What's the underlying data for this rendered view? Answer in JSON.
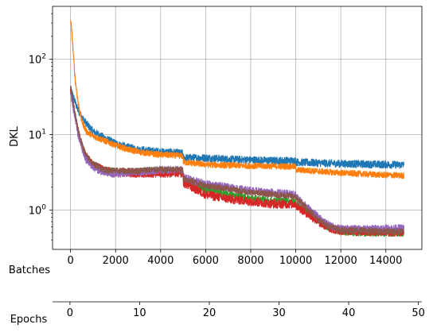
{
  "chart_data": {
    "type": "line",
    "title": "",
    "ylabel": "DKL",
    "yscale": "log",
    "ylim": [
      0.3,
      500
    ],
    "xlim": [
      -800,
      15600
    ],
    "grid": true,
    "x_axis": {
      "label": "Batches",
      "ticks": [
        0,
        2000,
        4000,
        6000,
        8000,
        10000,
        12000,
        14000
      ],
      "tick_labels": [
        "0",
        "2000",
        "4000",
        "6000",
        "8000",
        "10000",
        "12000",
        "14000"
      ]
    },
    "secondary_x_axis": {
      "label": "Epochs",
      "ticks": [
        0,
        10,
        20,
        30,
        40,
        50
      ],
      "tick_labels": [
        "0",
        "10",
        "20",
        "30",
        "40",
        "50"
      ],
      "xlim": [
        -2.5,
        50.5
      ]
    },
    "y_axis": {
      "major_ticks": [
        1,
        10,
        100
      ],
      "tick_labels": [
        {
          "base": "10",
          "exp": "0"
        },
        {
          "base": "10",
          "exp": "1"
        },
        {
          "base": "10",
          "exp": "2"
        }
      ],
      "minor_ticks": [
        0.4,
        0.5,
        0.6,
        0.7,
        0.8,
        0.9,
        2,
        3,
        4,
        5,
        6,
        7,
        8,
        9,
        20,
        30,
        40,
        50,
        60,
        70,
        80,
        90,
        200,
        300,
        400
      ]
    },
    "series": [
      {
        "color": "#1f77b4",
        "noise": 0.05,
        "x": [
          0,
          150,
          300,
          500,
          700,
          1000,
          1500,
          2000,
          2500,
          3000,
          3500,
          4000,
          4500,
          4990,
          5010,
          6000,
          7000,
          8000,
          9000,
          9990,
          10010,
          11000,
          12000,
          13000,
          14000,
          14800
        ],
        "y": [
          40,
          30,
          22,
          17,
          14,
          11,
          9,
          7.6,
          6.8,
          6.3,
          6.1,
          5.9,
          5.8,
          5.6,
          4.9,
          4.9,
          4.7,
          4.6,
          4.5,
          4.5,
          4.3,
          4.2,
          4.1,
          4.05,
          4.0,
          3.95
        ]
      },
      {
        "color": "#ff7f0e",
        "noise": 0.04,
        "x": [
          0,
          100,
          200,
          350,
          500,
          700,
          1000,
          1500,
          2000,
          2500,
          3000,
          3500,
          4000,
          4500,
          4990,
          5010,
          6000,
          7000,
          8000,
          9000,
          9990,
          10010,
          11000,
          12000,
          13000,
          14000,
          14800
        ],
        "y": [
          350,
          150,
          55,
          25,
          15,
          11,
          9.5,
          8.3,
          7.2,
          6.4,
          5.9,
          5.6,
          5.4,
          5.3,
          5.2,
          4.3,
          4.0,
          3.9,
          3.85,
          3.8,
          3.75,
          3.4,
          3.25,
          3.1,
          3.0,
          2.9,
          2.85
        ]
      },
      {
        "color": "#2ca02c",
        "noise": 0.05,
        "x": [
          0,
          150,
          300,
          500,
          700,
          1000,
          1500,
          2000,
          2500,
          3000,
          3500,
          4000,
          4500,
          4990,
          5010,
          6000,
          7000,
          8000,
          9000,
          9990,
          10010,
          10500,
          11000,
          11500,
          12000,
          13000,
          14000,
          14800
        ],
        "y": [
          38,
          22,
          12,
          7,
          5,
          4,
          3.3,
          3.2,
          3.2,
          3.2,
          3.3,
          3.3,
          3.3,
          3.3,
          2.5,
          1.9,
          1.6,
          1.4,
          1.3,
          1.3,
          1.2,
          0.95,
          0.72,
          0.58,
          0.52,
          0.5,
          0.5,
          0.5
        ]
      },
      {
        "color": "#d62728",
        "noise": 0.06,
        "x": [
          0,
          150,
          300,
          500,
          700,
          1000,
          1500,
          2000,
          2500,
          3000,
          3500,
          4000,
          4500,
          4990,
          5010,
          6000,
          7000,
          8000,
          9000,
          9990,
          10010,
          10500,
          11000,
          11500,
          12000,
          13000,
          14000,
          14800
        ],
        "y": [
          40,
          22,
          12,
          7,
          5,
          4,
          3.3,
          3.1,
          3.1,
          3.1,
          3.1,
          3.1,
          3.1,
          3.1,
          2.3,
          1.6,
          1.4,
          1.3,
          1.2,
          1.2,
          1.15,
          0.9,
          0.7,
          0.58,
          0.53,
          0.52,
          0.51,
          0.51
        ]
      },
      {
        "color": "#9467bd",
        "noise": 0.05,
        "x": [
          0,
          150,
          300,
          500,
          700,
          1000,
          1500,
          2000,
          2500,
          3000,
          3500,
          4000,
          4500,
          4990,
          5010,
          6000,
          7000,
          8000,
          9000,
          9990,
          10010,
          10500,
          11000,
          11500,
          12000,
          13000,
          14000,
          14800
        ],
        "y": [
          36,
          20,
          11,
          6.5,
          4.6,
          3.7,
          3.1,
          3.0,
          3.1,
          3.2,
          3.3,
          3.4,
          3.4,
          3.4,
          2.7,
          2.2,
          2.0,
          1.8,
          1.7,
          1.6,
          1.5,
          1.1,
          0.8,
          0.62,
          0.56,
          0.56,
          0.57,
          0.57
        ]
      },
      {
        "color": "#8c564b",
        "noise": 0.04,
        "x": [
          0,
          150,
          300,
          500,
          700,
          1000,
          1500,
          2000,
          2500,
          3000,
          3500,
          4000,
          4500,
          4990,
          5010,
          6000,
          7000,
          8000,
          9000,
          9990,
          10010,
          10500,
          11000,
          11500,
          12000,
          13000,
          14000,
          14800
        ],
        "y": [
          42,
          23,
          13,
          7.5,
          5.2,
          4.1,
          3.4,
          3.3,
          3.3,
          3.3,
          3.4,
          3.4,
          3.4,
          3.4,
          2.6,
          2.1,
          1.9,
          1.7,
          1.6,
          1.5,
          1.45,
          1.05,
          0.76,
          0.6,
          0.54,
          0.53,
          0.52,
          0.52
        ]
      }
    ]
  }
}
